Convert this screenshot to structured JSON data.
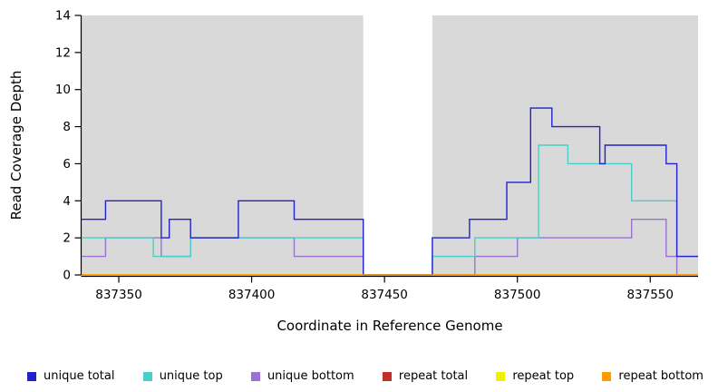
{
  "chart_data": {
    "type": "line",
    "subtype": "step-coverage-plot",
    "title": "",
    "xlabel": "Coordinate in Reference Genome",
    "ylabel": "Read Coverage Depth",
    "xlim": [
      837336,
      837568
    ],
    "ylim": [
      0,
      14
    ],
    "x_ticks": [
      837350,
      837400,
      837450,
      837500,
      837550
    ],
    "y_ticks": [
      0,
      2,
      4,
      6,
      8,
      10,
      12,
      14
    ],
    "grid": false,
    "plot_bg_color": "#d9d9d9",
    "gap_region": [
      837442,
      837468
    ],
    "axis_color": "#000000",
    "series": [
      {
        "name": "unique total",
        "color": "#2222cc",
        "z": 5,
        "steps": [
          [
            837336,
            3
          ],
          [
            837345,
            4
          ],
          [
            837366,
            2
          ],
          [
            837369,
            3
          ],
          [
            837377,
            2
          ],
          [
            837395,
            4
          ],
          [
            837416,
            3
          ],
          [
            837442,
            0
          ],
          [
            837468,
            2
          ],
          [
            837482,
            3
          ],
          [
            837496,
            5
          ],
          [
            837505,
            9
          ],
          [
            837513,
            8
          ],
          [
            837531,
            6
          ],
          [
            837533,
            7
          ],
          [
            837556,
            6
          ],
          [
            837560,
            1
          ]
        ]
      },
      {
        "name": "unique top",
        "color": "#49cfc9",
        "z": 4,
        "steps": [
          [
            837336,
            2
          ],
          [
            837363,
            1
          ],
          [
            837377,
            2
          ],
          [
            837442,
            0
          ],
          [
            837468,
            1
          ],
          [
            837484,
            2
          ],
          [
            837508,
            7
          ],
          [
            837519,
            6
          ],
          [
            837543,
            4
          ],
          [
            837560,
            1
          ]
        ]
      },
      {
        "name": "unique bottom",
        "color": "#9b72cf",
        "z": 3,
        "steps": [
          [
            837336,
            1
          ],
          [
            837345,
            2
          ],
          [
            837366,
            1
          ],
          [
            837377,
            2
          ],
          [
            837416,
            1
          ],
          [
            837442,
            0
          ],
          [
            837484,
            1
          ],
          [
            837500,
            2
          ],
          [
            837543,
            3
          ],
          [
            837556,
            1
          ],
          [
            837560,
            0
          ]
        ]
      },
      {
        "name": "repeat total",
        "color": "#c03028",
        "z": 1,
        "steps": [
          [
            837336,
            0
          ]
        ]
      },
      {
        "name": "repeat top",
        "color": "#f0f000",
        "z": 2,
        "steps": [
          [
            837336,
            0
          ]
        ]
      },
      {
        "name": "repeat bottom",
        "color": "#ff9d00",
        "z": 6,
        "steps": [
          [
            837336,
            0
          ]
        ]
      }
    ],
    "legend": [
      {
        "label": "unique total",
        "color": "#2222cc"
      },
      {
        "label": "unique top",
        "color": "#49cfc9"
      },
      {
        "label": "unique bottom",
        "color": "#9b72cf"
      },
      {
        "label": "repeat total",
        "color": "#c03028"
      },
      {
        "label": "repeat top",
        "color": "#f0f000"
      },
      {
        "label": "repeat bottom",
        "color": "#ff9d00"
      }
    ],
    "legend_position": "bottom"
  }
}
